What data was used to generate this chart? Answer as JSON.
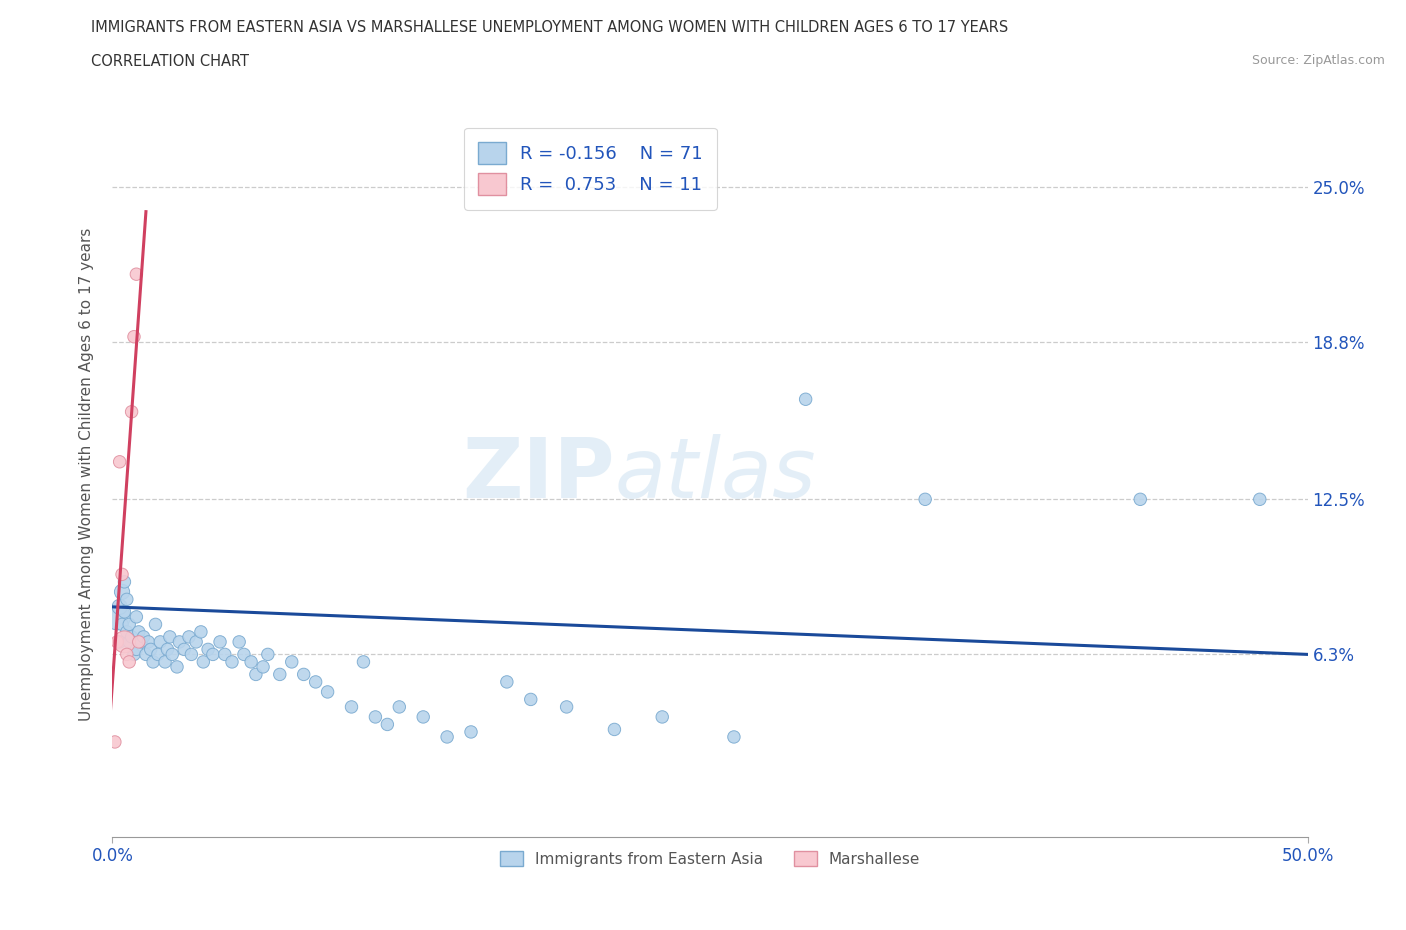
{
  "title": "IMMIGRANTS FROM EASTERN ASIA VS MARSHALLESE UNEMPLOYMENT AMONG WOMEN WITH CHILDREN AGES 6 TO 17 YEARS",
  "subtitle": "CORRELATION CHART",
  "source": "Source: ZipAtlas.com",
  "ylabel": "Unemployment Among Women with Children Ages 6 to 17 years",
  "xmin": 0.0,
  "xmax": 0.5,
  "ymin": -0.01,
  "ymax": 0.28,
  "ytick_labels": [
    "6.3%",
    "12.5%",
    "18.8%",
    "25.0%"
  ],
  "ytick_values": [
    0.063,
    0.125,
    0.188,
    0.25
  ],
  "xtick_labels": [
    "0.0%",
    "50.0%"
  ],
  "xtick_values": [
    0.0,
    0.5
  ],
  "blue_R": -0.156,
  "blue_N": 71,
  "pink_R": 0.753,
  "pink_N": 11,
  "blue_color": "#b8d4ec",
  "blue_edge_color": "#7aaad0",
  "blue_line_color": "#1a4a9a",
  "pink_color": "#f8c8d0",
  "pink_edge_color": "#e090a0",
  "pink_line_color": "#d04060",
  "watermark": "ZIPatlas",
  "blue_x": [
    0.002,
    0.003,
    0.003,
    0.004,
    0.004,
    0.005,
    0.005,
    0.006,
    0.006,
    0.007,
    0.007,
    0.008,
    0.009,
    0.01,
    0.01,
    0.011,
    0.012,
    0.013,
    0.014,
    0.015,
    0.016,
    0.017,
    0.018,
    0.019,
    0.02,
    0.022,
    0.023,
    0.024,
    0.025,
    0.027,
    0.028,
    0.03,
    0.032,
    0.033,
    0.035,
    0.037,
    0.038,
    0.04,
    0.042,
    0.045,
    0.047,
    0.05,
    0.053,
    0.055,
    0.058,
    0.06,
    0.063,
    0.065,
    0.07,
    0.075,
    0.08,
    0.085,
    0.09,
    0.1,
    0.105,
    0.11,
    0.115,
    0.12,
    0.13,
    0.14,
    0.15,
    0.165,
    0.175,
    0.19,
    0.21,
    0.23,
    0.26,
    0.29,
    0.34,
    0.43,
    0.48
  ],
  "blue_y": [
    0.078,
    0.082,
    0.068,
    0.075,
    0.088,
    0.08,
    0.092,
    0.072,
    0.085,
    0.075,
    0.068,
    0.07,
    0.063,
    0.078,
    0.065,
    0.072,
    0.068,
    0.07,
    0.063,
    0.068,
    0.065,
    0.06,
    0.075,
    0.063,
    0.068,
    0.06,
    0.065,
    0.07,
    0.063,
    0.058,
    0.068,
    0.065,
    0.07,
    0.063,
    0.068,
    0.072,
    0.06,
    0.065,
    0.063,
    0.068,
    0.063,
    0.06,
    0.068,
    0.063,
    0.06,
    0.055,
    0.058,
    0.063,
    0.055,
    0.06,
    0.055,
    0.052,
    0.048,
    0.042,
    0.06,
    0.038,
    0.035,
    0.042,
    0.038,
    0.03,
    0.032,
    0.052,
    0.045,
    0.042,
    0.033,
    0.038,
    0.03,
    0.165,
    0.125,
    0.125,
    0.125
  ],
  "blue_sizes": [
    350,
    120,
    80,
    80,
    120,
    80,
    80,
    80,
    80,
    80,
    80,
    80,
    80,
    80,
    80,
    80,
    80,
    80,
    80,
    80,
    80,
    80,
    80,
    80,
    80,
    80,
    80,
    80,
    80,
    80,
    80,
    80,
    80,
    80,
    80,
    80,
    80,
    80,
    80,
    80,
    80,
    80,
    80,
    80,
    80,
    80,
    80,
    80,
    80,
    80,
    80,
    80,
    80,
    80,
    80,
    80,
    80,
    80,
    80,
    80,
    80,
    80,
    80,
    80,
    80,
    80,
    80,
    80,
    80,
    80,
    80
  ],
  "pink_x": [
    0.001,
    0.002,
    0.003,
    0.004,
    0.005,
    0.006,
    0.007,
    0.008,
    0.009,
    0.01,
    0.011
  ],
  "pink_y": [
    0.028,
    0.068,
    0.14,
    0.095,
    0.068,
    0.063,
    0.06,
    0.16,
    0.19,
    0.215,
    0.068
  ],
  "pink_sizes": [
    80,
    80,
    80,
    80,
    250,
    80,
    80,
    80,
    80,
    80,
    80
  ],
  "blue_trend_x0": 0.0,
  "blue_trend_x1": 0.5,
  "blue_trend_y0": 0.082,
  "blue_trend_y1": 0.063,
  "pink_trend_x0": -0.002,
  "pink_trend_x1": 0.014,
  "pink_trend_y0": 0.025,
  "pink_trend_y1": 0.24
}
